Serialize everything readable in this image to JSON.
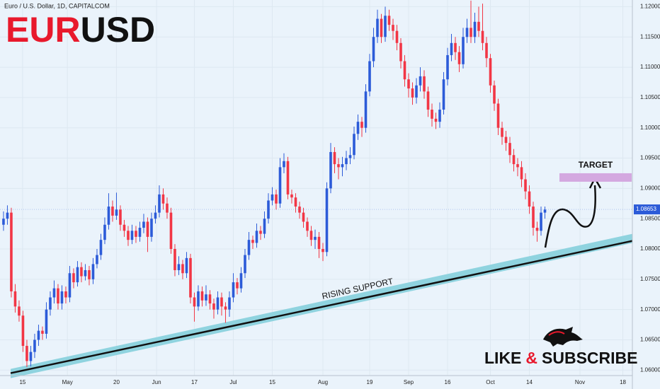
{
  "chart_data": {
    "type": "candlestick",
    "title": {
      "parts": [
        "EUR",
        "USD"
      ]
    },
    "subtitle": "Euro / U.S. Dollar, 1D, CAPITALCOM",
    "up_color": "#2c5bd8",
    "down_color": "#f23645",
    "ylim": [
      1.0591,
      1.1211
    ],
    "yticks": [
      {
        "value": 1.06,
        "label": "1.06000"
      },
      {
        "value": 1.065,
        "label": "1.06500"
      },
      {
        "value": 1.07,
        "label": "1.07000"
      },
      {
        "value": 1.075,
        "label": "1.07500"
      },
      {
        "value": 1.08,
        "label": "1.08000"
      },
      {
        "value": 1.085,
        "label": "1.08500"
      },
      {
        "value": 1.09,
        "label": "1.09000"
      },
      {
        "value": 1.095,
        "label": "1.09500"
      },
      {
        "value": 1.1,
        "label": "1.10000"
      },
      {
        "value": 1.105,
        "label": "1.10500"
      },
      {
        "value": 1.11,
        "label": "1.11000"
      },
      {
        "value": 1.115,
        "label": "1.11500"
      },
      {
        "value": 1.12,
        "label": "1.12000"
      }
    ],
    "xlim": [
      -0.9,
      161.45
    ],
    "xticks": [
      {
        "value": 4.9,
        "label": "15"
      },
      {
        "value": 16.4,
        "label": "May"
      },
      {
        "value": 29,
        "label": "20"
      },
      {
        "value": 39.3,
        "label": "Jun"
      },
      {
        "value": 49,
        "label": "17"
      },
      {
        "value": 59,
        "label": "Jul"
      },
      {
        "value": 69,
        "label": "15"
      },
      {
        "value": 82,
        "label": "Aug"
      },
      {
        "value": 94,
        "label": "19"
      },
      {
        "value": 104,
        "label": "Sep"
      },
      {
        "value": 114,
        "label": "16"
      },
      {
        "value": 125,
        "label": "Oct"
      },
      {
        "value": 135,
        "label": "14"
      },
      {
        "value": 148,
        "label": "Nov"
      },
      {
        "value": 159,
        "label": "18"
      }
    ],
    "last_price": {
      "value": 1.08653,
      "label": "1.08653"
    },
    "target_label": "TARGET",
    "target_zone": [
      1.0911,
      1.0925
    ],
    "support_label": "RISING SUPPORT",
    "support_line": [
      1.0602,
      1.0825
    ],
    "cta": {
      "parts": [
        "LIKE",
        "&",
        "SUBSCRIBE"
      ]
    },
    "ohlc": [
      [
        1.084,
        1.0862,
        1.083,
        1.085
      ],
      [
        1.085,
        1.0872,
        1.084,
        1.086
      ],
      [
        1.086,
        1.0868,
        1.072,
        1.073
      ],
      [
        1.073,
        1.0742,
        1.0695,
        1.0705
      ],
      [
        1.0705,
        1.0715,
        1.068,
        1.069
      ],
      [
        1.069,
        1.0698,
        1.063,
        1.064
      ],
      [
        1.064,
        1.065,
        1.0605,
        1.0615
      ],
      [
        1.0615,
        1.064,
        1.0606,
        1.063
      ],
      [
        1.063,
        1.066,
        1.062,
        1.065
      ],
      [
        1.065,
        1.0675,
        1.064,
        1.0665
      ],
      [
        1.0665,
        1.0672,
        1.065,
        1.066
      ],
      [
        1.066,
        1.0712,
        1.0652,
        1.07
      ],
      [
        1.07,
        1.073,
        1.069,
        1.072
      ],
      [
        1.072,
        1.0748,
        1.071,
        1.0735
      ],
      [
        1.0735,
        1.0742,
        1.07,
        1.071
      ],
      [
        1.071,
        1.074,
        1.07,
        1.073
      ],
      [
        1.073,
        1.0738,
        1.071,
        1.072
      ],
      [
        1.072,
        1.0772,
        1.0712,
        1.076
      ],
      [
        1.076,
        1.0768,
        1.0735,
        1.0745
      ],
      [
        1.0745,
        1.078,
        1.0738,
        1.077
      ],
      [
        1.077,
        1.0778,
        1.0745,
        1.0755
      ],
      [
        1.0755,
        1.0775,
        1.0748,
        1.0765
      ],
      [
        1.0765,
        1.0772,
        1.074,
        1.075
      ],
      [
        1.075,
        1.0785,
        1.0742,
        1.0775
      ],
      [
        1.0775,
        1.08,
        1.0768,
        1.079
      ],
      [
        1.079,
        1.0825,
        1.0782,
        1.0815
      ],
      [
        1.0815,
        1.0852,
        1.0808,
        1.084
      ],
      [
        1.084,
        1.0892,
        1.0832,
        1.087
      ],
      [
        1.087,
        1.088,
        1.0845,
        1.0855
      ],
      [
        1.0855,
        1.0893,
        1.0848,
        1.0865
      ],
      [
        1.0865,
        1.0872,
        1.083,
        1.084
      ],
      [
        1.084,
        1.0848,
        1.082,
        1.083
      ],
      [
        1.083,
        1.0838,
        1.0805,
        1.0815
      ],
      [
        1.0815,
        1.084,
        1.0808,
        1.083
      ],
      [
        1.083,
        1.0838,
        1.081,
        1.082
      ],
      [
        1.082,
        1.0845,
        1.0812,
        1.0835
      ],
      [
        1.0835,
        1.0858,
        1.0826,
        1.0845
      ],
      [
        1.0845,
        1.0852,
        1.0795,
        1.082
      ],
      [
        1.082,
        1.086,
        1.0812,
        1.085
      ],
      [
        1.085,
        1.0872,
        1.0842,
        1.086
      ],
      [
        1.086,
        1.0905,
        1.0852,
        1.089
      ],
      [
        1.089,
        1.09,
        1.0865,
        1.0875
      ],
      [
        1.0875,
        1.0885,
        1.085,
        1.086
      ],
      [
        1.086,
        1.0868,
        1.0792,
        1.08
      ],
      [
        1.08,
        1.0808,
        1.0755,
        1.0765
      ],
      [
        1.0765,
        1.0788,
        1.0757,
        1.0775
      ],
      [
        1.0775,
        1.0782,
        1.075,
        1.076
      ],
      [
        1.076,
        1.0795,
        1.0752,
        1.0785
      ],
      [
        1.0785,
        1.0792,
        1.071,
        1.072
      ],
      [
        1.072,
        1.0728,
        1.068,
        1.0705
      ],
      [
        1.0705,
        1.074,
        1.0698,
        1.073
      ],
      [
        1.073,
        1.0738,
        1.0705,
        1.0715
      ],
      [
        1.0715,
        1.074,
        1.0706,
        1.0725
      ],
      [
        1.0725,
        1.0732,
        1.07,
        1.071
      ],
      [
        1.071,
        1.0718,
        1.0685,
        1.07
      ],
      [
        1.07,
        1.073,
        1.0692,
        1.072
      ],
      [
        1.072,
        1.0728,
        1.069,
        1.0705
      ],
      [
        1.0705,
        1.0712,
        1.0678,
        1.07
      ],
      [
        1.07,
        1.073,
        1.0688,
        1.072
      ],
      [
        1.072,
        1.076,
        1.0712,
        1.0745
      ],
      [
        1.0745,
        1.0752,
        1.0725,
        1.0735
      ],
      [
        1.0735,
        1.077,
        1.0728,
        1.076
      ],
      [
        1.076,
        1.08,
        1.0752,
        1.079
      ],
      [
        1.079,
        1.0828,
        1.0782,
        1.0815
      ],
      [
        1.0815,
        1.0822,
        1.08,
        1.081
      ],
      [
        1.081,
        1.0842,
        1.0802,
        1.083
      ],
      [
        1.083,
        1.0838,
        1.0815,
        1.0825
      ],
      [
        1.0825,
        1.0862,
        1.0818,
        1.085
      ],
      [
        1.085,
        1.0892,
        1.0842,
        1.088
      ],
      [
        1.088,
        1.0902,
        1.0872,
        1.089
      ],
      [
        1.089,
        1.0898,
        1.0865,
        1.0875
      ],
      [
        1.0875,
        1.095,
        1.0868,
        1.0935
      ],
      [
        1.0935,
        1.0958,
        1.0925,
        1.0945
      ],
      [
        1.0945,
        1.0952,
        1.0882,
        1.089
      ],
      [
        1.089,
        1.0898,
        1.0875,
        1.0885
      ],
      [
        1.0885,
        1.0892,
        1.086,
        1.087
      ],
      [
        1.087,
        1.0878,
        1.085,
        1.086
      ],
      [
        1.086,
        1.0868,
        1.0835,
        1.0845
      ],
      [
        1.0845,
        1.0852,
        1.082,
        1.083
      ],
      [
        1.083,
        1.0838,
        1.0805,
        1.0815
      ],
      [
        1.0815,
        1.0832,
        1.08,
        1.082
      ],
      [
        1.082,
        1.0828,
        1.0785,
        1.08
      ],
      [
        1.08,
        1.081,
        1.078,
        1.0795
      ],
      [
        1.0795,
        1.091,
        1.0788,
        1.09
      ],
      [
        1.09,
        1.0975,
        1.0892,
        1.096
      ],
      [
        1.096,
        1.0968,
        1.0925,
        1.094
      ],
      [
        1.094,
        1.095,
        1.0915,
        1.0935
      ],
      [
        1.0935,
        1.0952,
        1.092,
        1.094
      ],
      [
        1.094,
        1.0962,
        1.093,
        1.095
      ],
      [
        1.095,
        1.0968,
        1.094,
        1.0955
      ],
      [
        1.0955,
        1.1002,
        1.0948,
        1.099
      ],
      [
        1.099,
        1.1022,
        1.098,
        1.101
      ],
      [
        1.101,
        1.1018,
        1.0985,
        1.1
      ],
      [
        1.1,
        1.1072,
        1.0992,
        1.106
      ],
      [
        1.106,
        1.1122,
        1.1052,
        1.111
      ],
      [
        1.111,
        1.1165,
        1.11,
        1.115
      ],
      [
        1.115,
        1.1195,
        1.114,
        1.118
      ],
      [
        1.118,
        1.1188,
        1.114,
        1.115
      ],
      [
        1.115,
        1.12,
        1.1142,
        1.1185
      ],
      [
        1.1185,
        1.1195,
        1.116,
        1.117
      ],
      [
        1.117,
        1.118,
        1.1145,
        1.116
      ],
      [
        1.116,
        1.117,
        1.1128,
        1.114
      ],
      [
        1.114,
        1.1148,
        1.1098,
        1.111
      ],
      [
        1.111,
        1.112,
        1.1068,
        1.108
      ],
      [
        1.108,
        1.109,
        1.105,
        1.1065
      ],
      [
        1.1065,
        1.1075,
        1.1038,
        1.105
      ],
      [
        1.105,
        1.1082,
        1.104,
        1.107
      ],
      [
        1.107,
        1.11,
        1.106,
        1.1085
      ],
      [
        1.1085,
        1.1095,
        1.1048,
        1.106
      ],
      [
        1.106,
        1.1068,
        1.1018,
        1.103
      ],
      [
        1.103,
        1.104,
        1.1002,
        1.1015
      ],
      [
        1.1015,
        1.1025,
        1.0998,
        1.101
      ],
      [
        1.101,
        1.1042,
        1.1,
        1.103
      ],
      [
        1.103,
        1.1092,
        1.1022,
        1.108
      ],
      [
        1.108,
        1.1132,
        1.107,
        1.112
      ],
      [
        1.112,
        1.1155,
        1.111,
        1.114
      ],
      [
        1.114,
        1.115,
        1.1112,
        1.1125
      ],
      [
        1.1125,
        1.1135,
        1.1092,
        1.1105
      ],
      [
        1.1105,
        1.1165,
        1.1098,
        1.115
      ],
      [
        1.115,
        1.118,
        1.114,
        1.1165
      ],
      [
        1.1165,
        1.121,
        1.114,
        1.115
      ],
      [
        1.115,
        1.119,
        1.114,
        1.1175
      ],
      [
        1.1175,
        1.12,
        1.115,
        1.116
      ],
      [
        1.116,
        1.1205,
        1.1128,
        1.114
      ],
      [
        1.114,
        1.115,
        1.11,
        1.1115
      ],
      [
        1.1115,
        1.1122,
        1.1058,
        1.107
      ],
      [
        1.107,
        1.1078,
        1.1028,
        1.104
      ],
      [
        1.104,
        1.1048,
        1.0988,
        1.1
      ],
      [
        1.1,
        1.101,
        1.0972,
        1.0985
      ],
      [
        1.0985,
        1.0995,
        1.0962,
        1.0975
      ],
      [
        1.0975,
        1.0985,
        1.0942,
        1.0955
      ],
      [
        1.0955,
        1.0965,
        1.0928,
        1.094
      ],
      [
        1.094,
        1.095,
        1.092,
        1.0935
      ],
      [
        1.0935,
        1.0945,
        1.0902,
        1.0915
      ],
      [
        1.0915,
        1.0925,
        1.0882,
        1.0895
      ],
      [
        1.0895,
        1.0905,
        1.0858,
        1.087
      ],
      [
        1.087,
        1.0878,
        1.0822,
        1.0835
      ],
      [
        1.0835,
        1.0845,
        1.0812,
        1.083
      ],
      [
        1.083,
        1.087,
        1.0822,
        1.086
      ],
      [
        1.086,
        1.087,
        1.085,
        1.0865
      ]
    ]
  }
}
